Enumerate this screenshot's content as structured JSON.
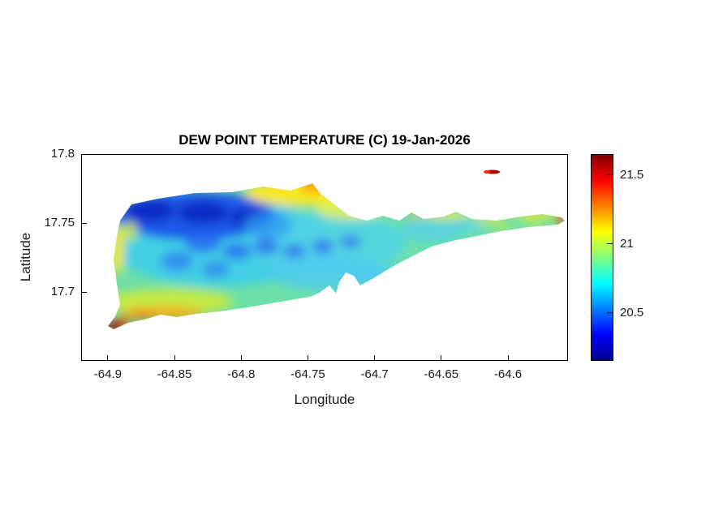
{
  "chart_data": {
    "type": "heatmap",
    "title": "DEW POINT TEMPERATURE (C) 19-Jan-2026",
    "xlabel": "Longitude",
    "ylabel": "Latitude",
    "xlim": [
      -64.92,
      -64.555
    ],
    "ylim": [
      17.65,
      17.8
    ],
    "xticks": [
      -64.9,
      -64.85,
      -64.8,
      -64.75,
      -64.7,
      -64.65,
      -64.6
    ],
    "yticks": [
      17.8,
      17.75,
      17.7
    ],
    "grid": false,
    "colormap": "jet",
    "colorbar": {
      "position": "right",
      "ticks": [
        21.5,
        21,
        20.5
      ],
      "range": [
        20.15,
        21.65
      ],
      "gradient_stops": [
        [
          "#00008f",
          0
        ],
        [
          "#0000ff",
          12.5
        ],
        [
          "#00ffff",
          37.5
        ],
        [
          "#ffff00",
          62.5
        ],
        [
          "#ff0000",
          87.5
        ],
        [
          "#800000",
          100
        ]
      ]
    },
    "value_units": "C",
    "region": "island landmass interpolated field",
    "sample_values_lon_lat_c": [
      [
        -64.895,
        17.68,
        21.6
      ],
      [
        -64.885,
        17.695,
        21.1
      ],
      [
        -64.87,
        17.7,
        21.0
      ],
      [
        -64.87,
        17.755,
        20.3
      ],
      [
        -64.845,
        17.75,
        20.3
      ],
      [
        -64.82,
        17.745,
        20.4
      ],
      [
        -64.85,
        17.72,
        20.55
      ],
      [
        -64.8,
        17.775,
        21.0
      ],
      [
        -64.785,
        17.772,
        21.15
      ],
      [
        -64.77,
        17.755,
        20.75
      ],
      [
        -64.76,
        17.73,
        20.6
      ],
      [
        -64.74,
        17.725,
        20.65
      ],
      [
        -64.72,
        17.74,
        20.8
      ],
      [
        -64.7,
        17.745,
        20.85
      ],
      [
        -64.67,
        17.75,
        20.9
      ],
      [
        -64.64,
        17.755,
        21.0
      ],
      [
        -64.6,
        17.75,
        20.9
      ],
      [
        -64.565,
        17.752,
        21.3
      ],
      [
        -64.62,
        17.79,
        21.5
      ]
    ]
  }
}
